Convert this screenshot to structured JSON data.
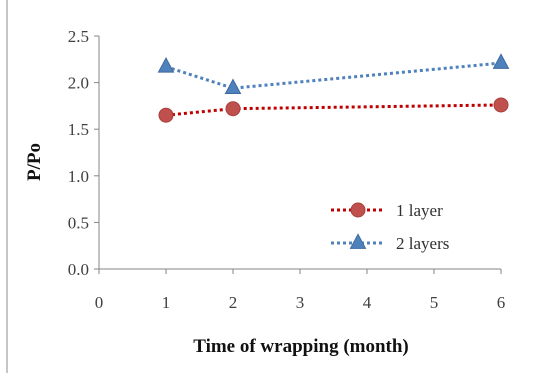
{
  "chart_data": {
    "type": "line",
    "title": "",
    "xlabel": "Time of wrapping (month)",
    "ylabel": "P/Po",
    "xlim": [
      0,
      6
    ],
    "ylim": [
      0.0,
      2.5
    ],
    "x_ticks": [
      "0",
      "1",
      "2",
      "3",
      "4",
      "5",
      "6"
    ],
    "y_ticks": [
      "0.0",
      "0.5",
      "1.0",
      "1.5",
      "2.0",
      "2.5"
    ],
    "grid": false,
    "legend_position": "bottom-right",
    "series": [
      {
        "name": "1 layer",
        "x": [
          1,
          2,
          6
        ],
        "values": [
          1.65,
          1.72,
          1.76
        ],
        "color": "#c0504d",
        "line_color": "#c00000",
        "marker": "circle",
        "line_style": "dotted"
      },
      {
        "name": "2 layers",
        "x": [
          1,
          2,
          6
        ],
        "values": [
          2.17,
          1.94,
          2.21
        ],
        "color": "#4f81bd",
        "line_color": "#4f81bd",
        "marker": "triangle",
        "line_style": "dotted"
      }
    ]
  }
}
